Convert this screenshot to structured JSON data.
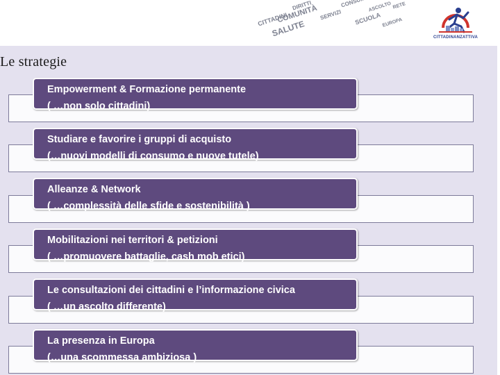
{
  "header": {
    "wordcloud": [
      "SALUTE",
      "COMUNITÀ",
      "SCUOLA",
      "CITTADINI",
      "DIRITTI",
      "SERVIZI",
      "CONSUMO",
      "ASCOLTO",
      "EUROPA",
      "RETE"
    ],
    "logo_text": "CITTADINANZATTIVA"
  },
  "page": {
    "title": "Le strategie"
  },
  "items": [
    {
      "title": "Empowerment & Formazione permanente",
      "subtitle": "( …non solo cittadini)"
    },
    {
      "title": "Studiare e favorire i gruppi di acquisto",
      "subtitle": "(…nuovi modelli di consumo e nuove tutele)"
    },
    {
      "title": "Alleanze & Network",
      "subtitle": "( …complessità delle sfide e sostenibilità )"
    },
    {
      "title": "Mobilitazioni  nei  territori  & petizioni",
      "subtitle": "( …promuovere battaglie, cash mob etici)"
    },
    {
      "title": "Le consultazioni dei cittadini e l’informazione civica",
      "subtitle": "( …un ascolto differente)"
    },
    {
      "title": "La presenza in Europa",
      "subtitle": "(…una scommessa ambiziosa )"
    }
  ],
  "colors": {
    "panel": "#e4e1ef",
    "item_box": "#5e4a7e",
    "frame_border": "#7c7a99",
    "logo_red": "#d0342c",
    "logo_blue": "#2a3f8f"
  }
}
